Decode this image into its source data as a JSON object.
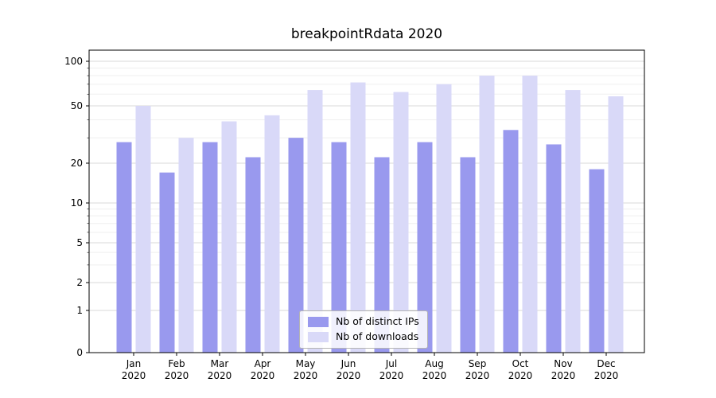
{
  "chart_data": {
    "type": "bar",
    "title": "breakpointRdata 2020",
    "categories": [
      "Jan 2020",
      "Feb 2020",
      "Mar 2020",
      "Apr 2020",
      "May 2020",
      "Jun 2020",
      "Jul 2020",
      "Aug 2020",
      "Sep 2020",
      "Oct 2020",
      "Nov 2020",
      "Dec 2020"
    ],
    "series": [
      {
        "name": "Nb of distinct IPs",
        "color": "#9999ee",
        "values": [
          28,
          17,
          28,
          22,
          30,
          28,
          22,
          28,
          22,
          34,
          27,
          18
        ]
      },
      {
        "name": "Nb of downloads",
        "color": "#d9d9f8",
        "values": [
          50,
          30,
          39,
          43,
          64,
          72,
          62,
          70,
          80,
          80,
          64,
          58
        ]
      }
    ],
    "xlabel": "",
    "ylabel": "",
    "yscale": "log-with-zero",
    "yticks": [
      0,
      1,
      2,
      5,
      10,
      20,
      50,
      100
    ],
    "minor_yticks": [
      3,
      4,
      6,
      7,
      8,
      9,
      30,
      40,
      60,
      70,
      80,
      90
    ],
    "ylim": [
      0,
      120
    ],
    "grid": true,
    "legend": {
      "position": "lower center",
      "entries": [
        "Nb of distinct IPs",
        "Nb of downloads"
      ]
    },
    "colors": {
      "grid_major": "#d9d9d9",
      "grid_minor": "#efefef",
      "axis": "#000000",
      "background": "#ffffff"
    }
  }
}
